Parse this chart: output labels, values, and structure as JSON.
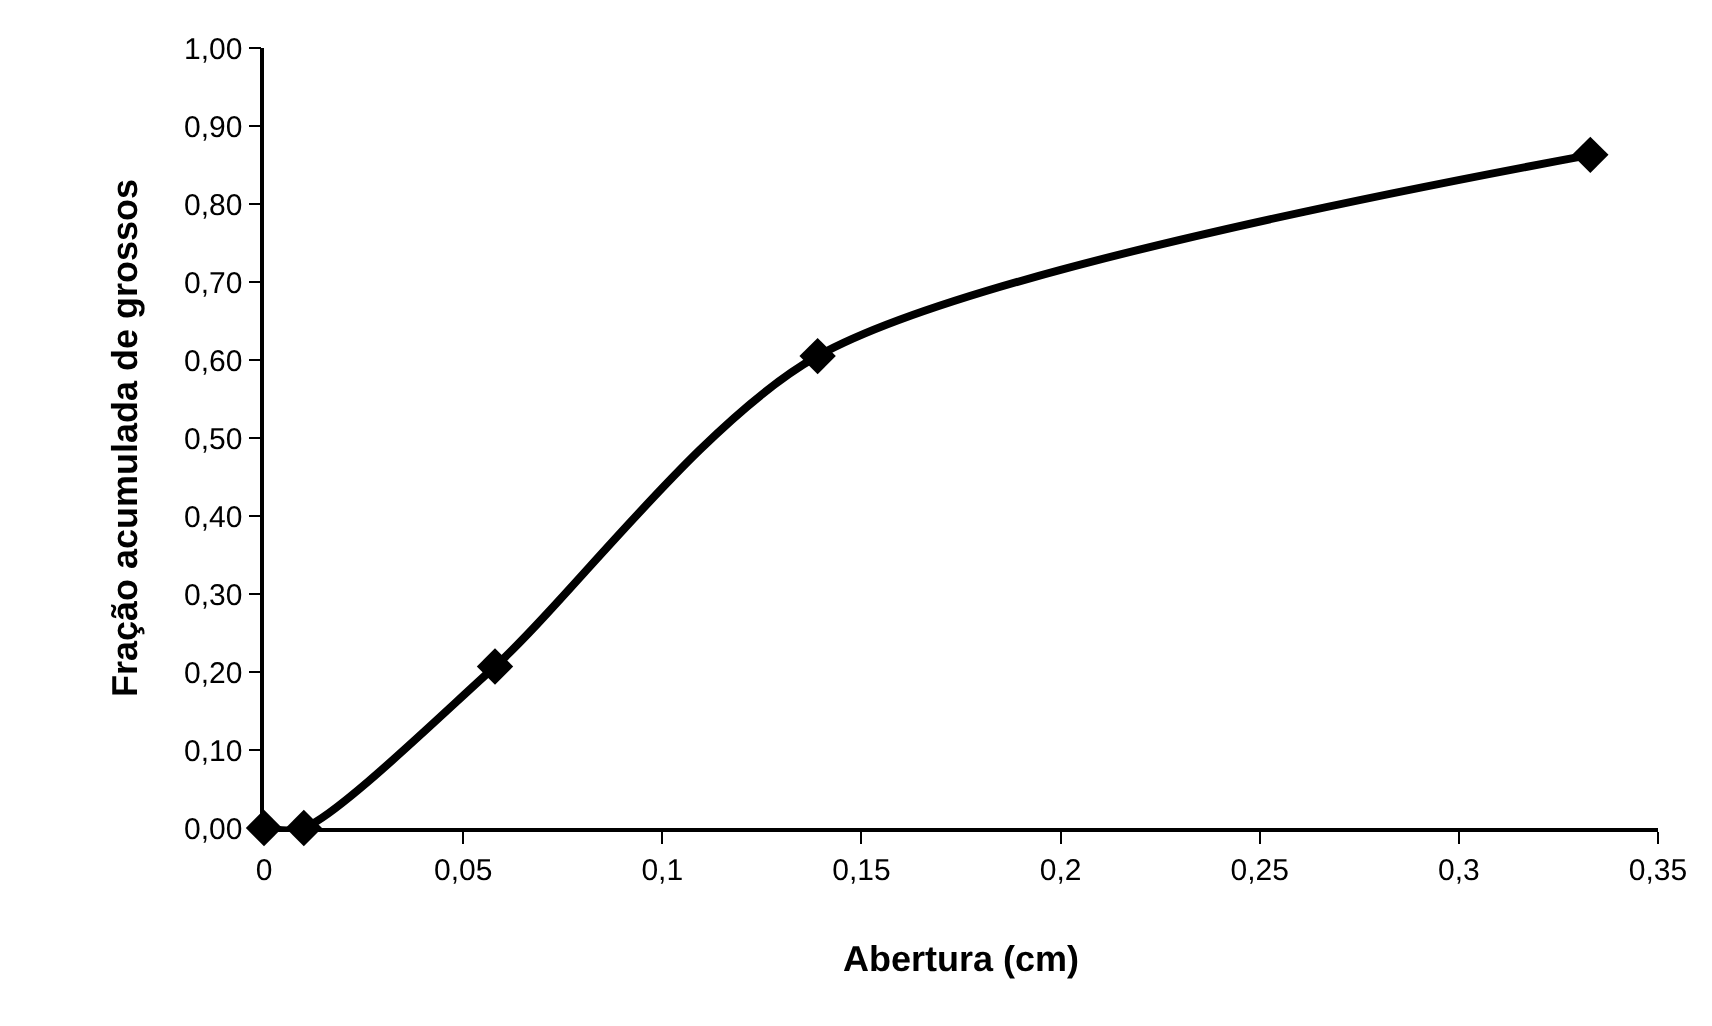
{
  "chart_data": {
    "type": "line",
    "xlabel": "Abertura (cm)",
    "ylabel": "Fração acumulada de grossos",
    "x": [
      0,
      0.01,
      0.058,
      0.139,
      0.333
    ],
    "series": [
      {
        "color": "#000000",
        "values": [
          0,
          0,
          0.207,
          0.605,
          0.863
        ]
      }
    ],
    "marker": "diamond",
    "line_style": "solid",
    "xlim": [
      0,
      0.35
    ],
    "ylim": [
      0,
      1
    ],
    "xticks": [
      0,
      {
        "value": 0.05,
        "label": "0,05"
      },
      {
        "value": 0.1,
        "label": "0,1"
      },
      {
        "value": 0.15,
        "label": "0,15"
      },
      {
        "value": 0.2,
        "label": "0,2"
      },
      {
        "value": 0.25,
        "label": "0,25"
      },
      {
        "value": 0.3,
        "label": "0,3"
      },
      {
        "value": 0.35,
        "label": "0,35"
      }
    ],
    "yticks": [
      {
        "value": 0,
        "label": "0,00"
      },
      {
        "value": 0.1,
        "label": "0,10"
      },
      {
        "value": 0.2,
        "label": "0,20"
      },
      {
        "value": 0.3,
        "label": "0,30"
      },
      {
        "value": 0.4,
        "label": "0,40"
      },
      {
        "value": 0.5,
        "label": "0,50"
      },
      {
        "value": 0.6,
        "label": "0,60"
      },
      {
        "value": 0.7,
        "label": "0,70"
      },
      {
        "value": 0.8,
        "label": "0,80"
      },
      {
        "value": 0.9,
        "label": "0,90"
      },
      {
        "value": 1,
        "label": "1,00"
      }
    ]
  }
}
